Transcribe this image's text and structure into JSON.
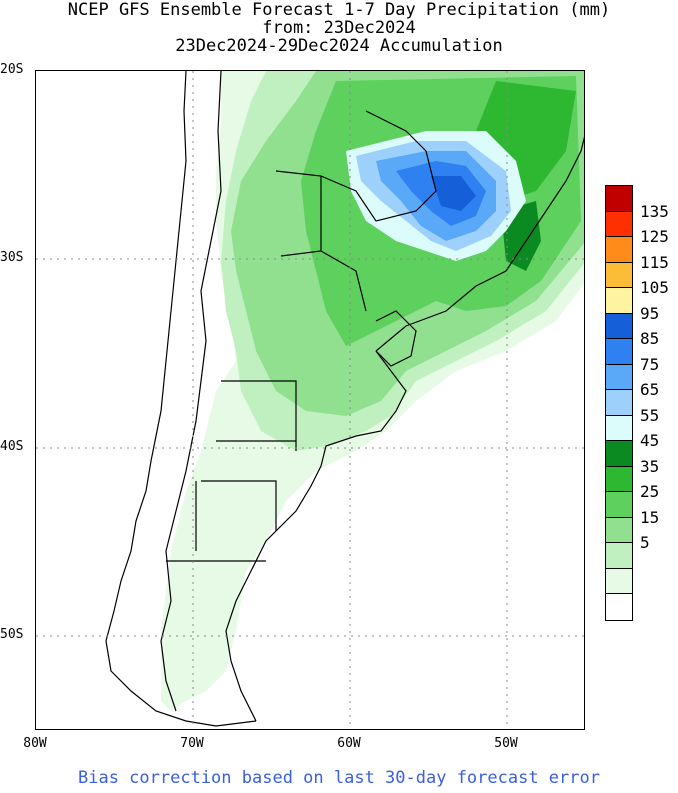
{
  "title": {
    "line1": "NCEP GFS Ensemble Forecast 1-7 Day Precipitation (mm)",
    "line2": "from: 23Dec2024",
    "line3": "23Dec2024-29Dec2024 Accumulation"
  },
  "axes": {
    "lat_labels": [
      "20S",
      "30S",
      "40S",
      "50S"
    ],
    "lon_labels": [
      "80W",
      "70W",
      "60W",
      "50W"
    ]
  },
  "legend": {
    "colors": [
      "#c00000",
      "#ff3000",
      "#ff8c1a",
      "#fbbd38",
      "#fef3a0",
      "#1560d8",
      "#2f80f0",
      "#5aa8f8",
      "#9ed0fc",
      "#dcfcfc",
      "#0c8a22",
      "#2eb832",
      "#5ed05e",
      "#90e090",
      "#c0f0c0",
      "#e6fae6",
      "#ffffff"
    ],
    "labels": [
      "135",
      "125",
      "115",
      "105",
      "95",
      "85",
      "75",
      "65",
      "55",
      "45",
      "35",
      "25",
      "15",
      "5"
    ]
  },
  "footer": "Bias correction based on last 30-day forecast error"
}
